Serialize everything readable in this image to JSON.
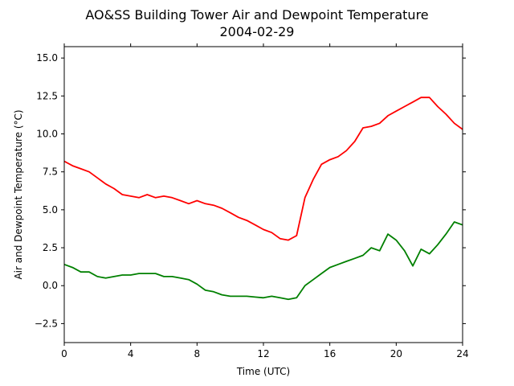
{
  "chart_data": {
    "type": "line",
    "title": "AO&SS Building Tower Air and Dewpoint Temperature",
    "subtitle": "2004-02-29",
    "xlabel": "Time (UTC)",
    "ylabel": "Air and Dewpoint Temperature (°C)",
    "xlim": [
      0,
      24
    ],
    "ylim": [
      -3.75,
      15.75
    ],
    "xticks": [
      0,
      4,
      8,
      12,
      16,
      20,
      24
    ],
    "yticks": [
      -2.5,
      0.0,
      2.5,
      5.0,
      7.5,
      10.0,
      12.5,
      15.0
    ],
    "ytick_labels": [
      "−2.5",
      "0.0",
      "2.5",
      "5.0",
      "7.5",
      "10.0",
      "12.5",
      "15.0"
    ],
    "grid": false,
    "legend": "none",
    "series": [
      {
        "color": "#ff0000",
        "x": [
          0,
          0.5,
          1,
          1.5,
          2,
          2.5,
          3,
          3.5,
          4,
          4.5,
          5,
          5.5,
          6,
          6.5,
          7,
          7.5,
          8,
          8.5,
          9,
          9.5,
          10,
          10.5,
          11,
          11.5,
          12,
          12.5,
          13,
          13.5,
          14,
          14.5,
          15,
          15.5,
          16,
          16.5,
          17,
          17.5,
          18,
          18.5,
          19,
          19.5,
          20,
          20.5,
          21,
          21.5,
          22,
          22.5,
          23,
          23.5,
          24
        ],
        "y": [
          8.2,
          7.9,
          7.7,
          7.5,
          7.1,
          6.7,
          6.4,
          6.0,
          5.9,
          5.8,
          6.0,
          5.8,
          5.9,
          5.8,
          5.6,
          5.4,
          5.6,
          5.4,
          5.3,
          5.1,
          4.8,
          4.5,
          4.3,
          4.0,
          3.7,
          3.5,
          3.1,
          3.0,
          3.3,
          5.8,
          7.0,
          8.0,
          8.3,
          8.5,
          8.9,
          9.5,
          10.4,
          10.5,
          10.7,
          11.2,
          11.5,
          11.8,
          12.1,
          12.4,
          12.4,
          11.8,
          11.3,
          10.7,
          10.3
        ]
      },
      {
        "color": "#008000",
        "x": [
          0,
          0.5,
          1,
          1.5,
          2,
          2.5,
          3,
          3.5,
          4,
          4.5,
          5,
          5.5,
          6,
          6.5,
          7,
          7.5,
          8,
          8.5,
          9,
          9.5,
          10,
          10.5,
          11,
          11.5,
          12,
          12.5,
          13,
          13.5,
          14,
          14.5,
          15,
          15.5,
          16,
          16.5,
          17,
          17.5,
          18,
          18.5,
          19,
          19.5,
          20,
          20.5,
          21,
          21.5,
          22,
          22.5,
          23,
          23.5,
          24
        ],
        "y": [
          1.4,
          1.2,
          0.9,
          0.9,
          0.6,
          0.5,
          0.6,
          0.7,
          0.7,
          0.8,
          0.8,
          0.8,
          0.6,
          0.6,
          0.5,
          0.4,
          0.1,
          -0.3,
          -0.4,
          -0.6,
          -0.7,
          -0.7,
          -0.7,
          -0.75,
          -0.8,
          -0.7,
          -0.8,
          -0.9,
          -0.8,
          0.0,
          0.4,
          0.8,
          1.2,
          1.4,
          1.6,
          1.8,
          2.0,
          2.5,
          2.3,
          3.4,
          3.0,
          2.3,
          1.3,
          2.4,
          2.1,
          2.7,
          3.4,
          4.2,
          4.0
        ]
      }
    ]
  }
}
